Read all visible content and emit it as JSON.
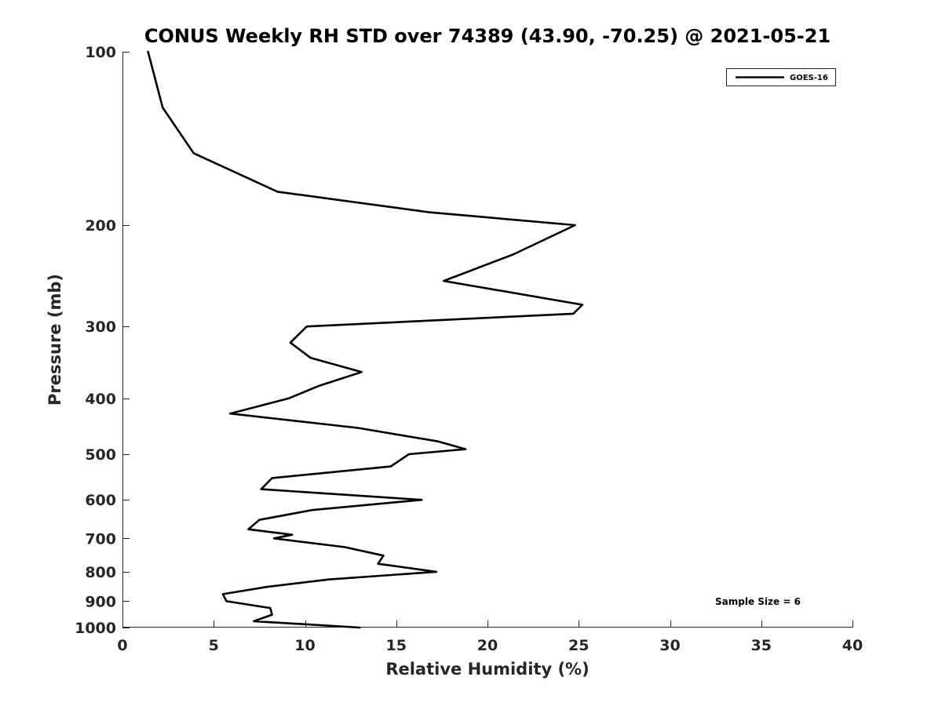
{
  "chart_data": {
    "type": "line",
    "title": "CONUS Weekly RH STD over 74389 (43.90, -70.25) @ 2021-05-21",
    "xlabel": "Relative Humidity (%)",
    "ylabel": "Pressure (mb)",
    "xlim": [
      0,
      40
    ],
    "ylim": [
      100,
      1000
    ],
    "yscale": "log",
    "y_reversed": true,
    "xticks": [
      0,
      5,
      10,
      15,
      20,
      25,
      30,
      35,
      40
    ],
    "yticks": [
      100,
      200,
      300,
      400,
      500,
      600,
      700,
      800,
      900,
      1000
    ],
    "grid": false,
    "legend": {
      "location": "top-right",
      "entries": [
        "GOES-16"
      ]
    },
    "annotation": "Sample Size = 6",
    "series": [
      {
        "name": "GOES-16",
        "color": "#000000",
        "points": [
          [
            1.4,
            100
          ],
          [
            2.2,
            125
          ],
          [
            3.9,
            150
          ],
          [
            8.5,
            175
          ],
          [
            16.8,
            190
          ],
          [
            24.8,
            200
          ],
          [
            21.4,
            225
          ],
          [
            17.6,
            250
          ],
          [
            25.2,
            275
          ],
          [
            24.7,
            285
          ],
          [
            10.1,
            300
          ],
          [
            9.2,
            320
          ],
          [
            10.3,
            340
          ],
          [
            13.1,
            360
          ],
          [
            10.8,
            380
          ],
          [
            9.1,
            400
          ],
          [
            5.9,
            425
          ],
          [
            12.9,
            450
          ],
          [
            17.3,
            475
          ],
          [
            18.8,
            490
          ],
          [
            15.7,
            500
          ],
          [
            14.7,
            525
          ],
          [
            8.2,
            550
          ],
          [
            7.6,
            575
          ],
          [
            16.4,
            600
          ],
          [
            10.4,
            625
          ],
          [
            7.5,
            650
          ],
          [
            6.9,
            675
          ],
          [
            9.3,
            690
          ],
          [
            8.3,
            700
          ],
          [
            12.2,
            725
          ],
          [
            14.3,
            750
          ],
          [
            14.0,
            775
          ],
          [
            17.2,
            800
          ],
          [
            11.3,
            825
          ],
          [
            7.9,
            850
          ],
          [
            5.5,
            875
          ],
          [
            5.7,
            900
          ],
          [
            8.1,
            925
          ],
          [
            8.2,
            950
          ],
          [
            7.2,
            975
          ],
          [
            13.0,
            1000
          ]
        ]
      }
    ]
  }
}
